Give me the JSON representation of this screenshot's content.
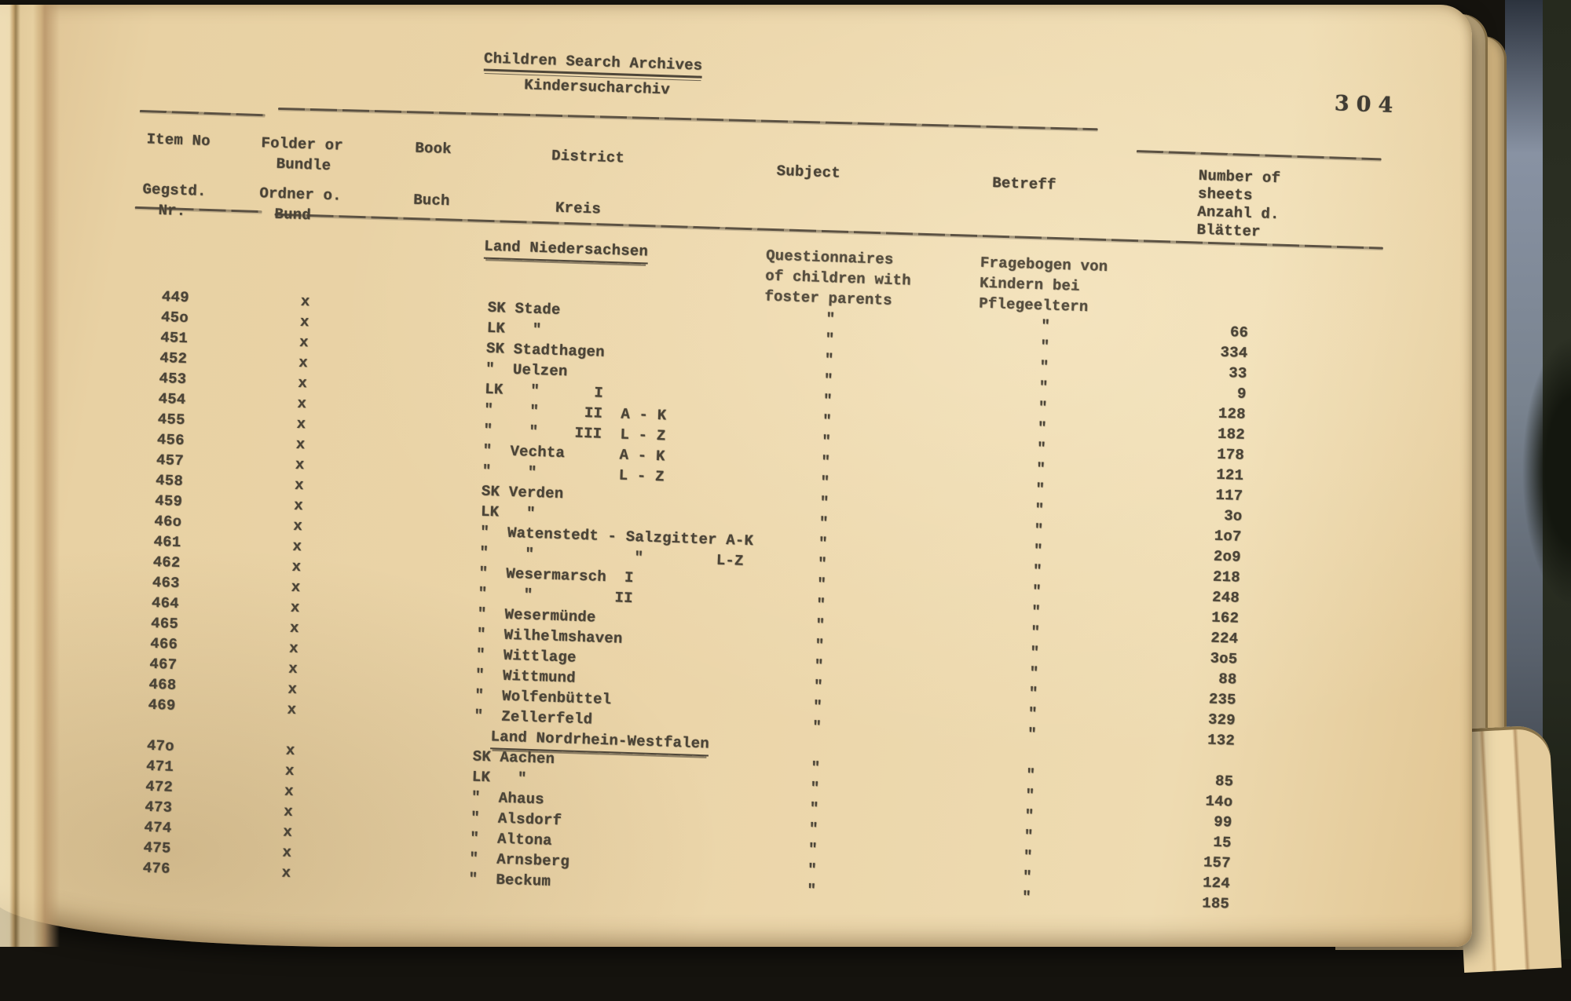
{
  "page": {
    "title_en": "Children Search Archives",
    "title_de": "Kindersucharchiv",
    "page_number": "304",
    "columns": {
      "item_en": "Item No",
      "item_de_1": "Gegstd.",
      "item_de_2": "Nr.",
      "folder_en_1": "Folder or",
      "folder_en_2": "Bundle",
      "folder_de_1": "Ordner o.",
      "folder_de_2": "Bund",
      "book_en": "Book",
      "book_de": "Buch",
      "district_en": "District",
      "district_de": "Kreis",
      "subject_en": "Subject",
      "subject_de": "Betreff",
      "sheets_lines": [
        "Number of",
        "sheets",
        "Anzahl d.",
        "Blätter"
      ]
    },
    "subject_block": [
      "Questionnaires",
      "of children with",
      "foster parents"
    ],
    "betreff_block": [
      "Fragebogen von",
      "Kindern bei",
      "Pflegeeltern"
    ],
    "ditto_mark": "\"",
    "sections": [
      {
        "header": "Land Niedersachsen",
        "rows": [
          {
            "no": "449",
            "folder": "x",
            "district": "SK Stade",
            "subject": "\"",
            "betreff": "\"",
            "sheets": "66"
          },
          {
            "no": "45o",
            "folder": "x",
            "district": "LK   \"",
            "subject": "\"",
            "betreff": "\"",
            "sheets": "334"
          },
          {
            "no": "451",
            "folder": "x",
            "district": "SK Stadthagen",
            "subject": "\"",
            "betreff": "\"",
            "sheets": "33"
          },
          {
            "no": "452",
            "folder": "x",
            "district": "\"  Uelzen",
            "subject": "\"",
            "betreff": "\"",
            "sheets": "9"
          },
          {
            "no": "453",
            "folder": "x",
            "district": "LK   \"      I",
            "subject": "\"",
            "betreff": "\"",
            "sheets": "128"
          },
          {
            "no": "454",
            "folder": "x",
            "district": "\"    \"     II  A - K",
            "subject": "\"",
            "betreff": "\"",
            "sheets": "182"
          },
          {
            "no": "455",
            "folder": "x",
            "district": "\"    \"    III  L - Z",
            "subject": "\"",
            "betreff": "\"",
            "sheets": "178"
          },
          {
            "no": "456",
            "folder": "x",
            "district": "\"  Vechta      A - K",
            "subject": "\"",
            "betreff": "\"",
            "sheets": "121"
          },
          {
            "no": "457",
            "folder": "x",
            "district": "\"    \"         L - Z",
            "subject": "\"",
            "betreff": "\"",
            "sheets": "117"
          },
          {
            "no": "458",
            "folder": "x",
            "district": "SK Verden",
            "subject": "\"",
            "betreff": "\"",
            "sheets": "3o"
          },
          {
            "no": "459",
            "folder": "x",
            "district": "LK   \"",
            "subject": "\"",
            "betreff": "\"",
            "sheets": "1o7"
          },
          {
            "no": "46o",
            "folder": "x",
            "district": "\"  Watenstedt - Salzgitter A-K",
            "subject": "\"",
            "betreff": "\"",
            "sheets": "2o9"
          },
          {
            "no": "461",
            "folder": "x",
            "district": "\"    \"           \"        L-Z",
            "subject": "\"",
            "betreff": "\"",
            "sheets": "218"
          },
          {
            "no": "462",
            "folder": "x",
            "district": "\"  Wesermarsch  I",
            "subject": "\"",
            "betreff": "\"",
            "sheets": "248"
          },
          {
            "no": "463",
            "folder": "x",
            "district": "\"    \"         II",
            "subject": "\"",
            "betreff": "\"",
            "sheets": "162"
          },
          {
            "no": "464",
            "folder": "x",
            "district": "\"  Wesermünde",
            "subject": "\"",
            "betreff": "\"",
            "sheets": "224"
          },
          {
            "no": "465",
            "folder": "x",
            "district": "\"  Wilhelmshaven",
            "subject": "\"",
            "betreff": "\"",
            "sheets": "3o5"
          },
          {
            "no": "466",
            "folder": "x",
            "district": "\"  Wittlage",
            "subject": "\"",
            "betreff": "\"",
            "sheets": "88"
          },
          {
            "no": "467",
            "folder": "x",
            "district": "\"  Wittmund",
            "subject": "\"",
            "betreff": "\"",
            "sheets": "235"
          },
          {
            "no": "468",
            "folder": "x",
            "district": "\"  Wolfenbüttel",
            "subject": "\"",
            "betreff": "\"",
            "sheets": "329"
          },
          {
            "no": "469",
            "folder": "x",
            "district": "\"  Zellerfeld",
            "subject": "\"",
            "betreff": "\"",
            "sheets": "132"
          }
        ]
      },
      {
        "header": "Land Nordrhein-Westfalen",
        "rows": [
          {
            "no": "47o",
            "folder": "x",
            "district": "SK Aachen",
            "subject": "\"",
            "betreff": "\"",
            "sheets": "85"
          },
          {
            "no": "471",
            "folder": "x",
            "district": "LK   \"",
            "subject": "\"",
            "betreff": "\"",
            "sheets": "14o"
          },
          {
            "no": "472",
            "folder": "x",
            "district": "\"  Ahaus",
            "subject": "\"",
            "betreff": "\"",
            "sheets": "99"
          },
          {
            "no": "473",
            "folder": "x",
            "district": "\"  Alsdorf",
            "subject": "\"",
            "betreff": "\"",
            "sheets": "15"
          },
          {
            "no": "474",
            "folder": "x",
            "district": "\"  Altona",
            "subject": "\"",
            "betreff": "\"",
            "sheets": "157"
          },
          {
            "no": "475",
            "folder": "x",
            "district": "\"  Arnsberg",
            "subject": "\"",
            "betreff": "\"",
            "sheets": "124"
          },
          {
            "no": "476",
            "folder": "x",
            "district": "\"  Beckum",
            "subject": "\"",
            "betreff": "\"",
            "sheets": "185"
          }
        ]
      }
    ]
  }
}
